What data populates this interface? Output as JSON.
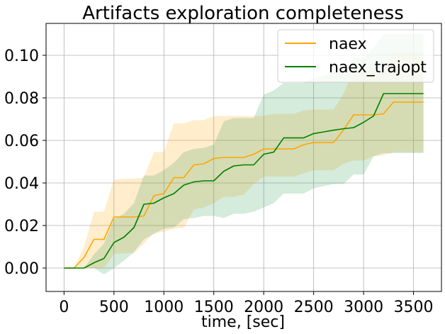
{
  "chart_data": {
    "type": "line",
    "title": "Artifacts exploration completeness",
    "xlabel": "time, [sec]",
    "ylabel": "",
    "xlim": [
      -180,
      3780
    ],
    "ylim": [
      -0.011,
      0.115
    ],
    "xticks": [
      0,
      500,
      1000,
      1500,
      2000,
      2500,
      3000,
      3500
    ],
    "xtick_labels": [
      "0",
      "500",
      "1000",
      "1500",
      "2000",
      "2500",
      "3000",
      "3500"
    ],
    "yticks": [
      0.0,
      0.02,
      0.04,
      0.06,
      0.08,
      0.1
    ],
    "ytick_labels": [
      "0.00",
      "0.02",
      "0.04",
      "0.06",
      "0.08",
      "0.10"
    ],
    "grid": true,
    "legend_position": "top-right",
    "series": [
      {
        "name": "naex",
        "color": "#ffa500",
        "band_color": "#ffa500",
        "x": [
          0,
          100,
          200,
          300,
          400,
          500,
          600,
          700,
          800,
          900,
          1000,
          1100,
          1200,
          1300,
          1400,
          1500,
          1600,
          1700,
          1800,
          1900,
          2000,
          2100,
          2200,
          2300,
          2400,
          2500,
          2600,
          2700,
          2800,
          2900,
          3000,
          3100,
          3200,
          3300,
          3400,
          3500,
          3600
        ],
        "y": [
          0.0,
          0.0,
          0.005,
          0.0135,
          0.0135,
          0.024,
          0.024,
          0.024,
          0.0245,
          0.034,
          0.035,
          0.0425,
          0.0425,
          0.0485,
          0.049,
          0.0515,
          0.052,
          0.052,
          0.052,
          0.0535,
          0.056,
          0.056,
          0.056,
          0.056,
          0.058,
          0.059,
          0.059,
          0.059,
          0.065,
          0.072,
          0.072,
          0.072,
          0.0725,
          0.078,
          0.078,
          0.078,
          0.078
        ],
        "lower": [
          0.0,
          0.0,
          0.0,
          0.0,
          0.0,
          0.0065,
          0.007,
          0.007,
          0.0115,
          0.0165,
          0.017,
          0.0185,
          0.019,
          0.0275,
          0.0285,
          0.0305,
          0.0335,
          0.0335,
          0.0345,
          0.0395,
          0.043,
          0.043,
          0.043,
          0.043,
          0.0445,
          0.046,
          0.046,
          0.046,
          0.049,
          0.0505,
          0.0505,
          0.0525,
          0.053,
          0.0545,
          0.0545,
          0.0545,
          0.0545
        ],
        "upper": [
          0.0,
          0.0,
          0.01,
          0.0265,
          0.0265,
          0.0415,
          0.042,
          0.042,
          0.0425,
          0.0545,
          0.0545,
          0.068,
          0.068,
          0.0695,
          0.0695,
          0.0715,
          0.0715,
          0.0715,
          0.0715,
          0.0715,
          0.0715,
          0.0725,
          0.0725,
          0.0725,
          0.074,
          0.0745,
          0.0745,
          0.0745,
          0.082,
          0.0935,
          0.0935,
          0.0935,
          0.092,
          0.1015,
          0.1015,
          0.1015,
          0.1015
        ]
      },
      {
        "name": "naex_trajopt",
        "color": "#008000",
        "band_color": "#2e9a4e",
        "x": [
          0,
          100,
          200,
          300,
          400,
          500,
          600,
          700,
          800,
          900,
          1000,
          1100,
          1200,
          1300,
          1400,
          1500,
          1600,
          1700,
          1800,
          1900,
          2000,
          2100,
          2200,
          2300,
          2400,
          2500,
          2600,
          2700,
          2800,
          2900,
          3000,
          3100,
          3200,
          3300,
          3400,
          3500,
          3600
        ],
        "y": [
          0.0,
          0.0,
          0.0,
          0.0025,
          0.0045,
          0.012,
          0.0145,
          0.019,
          0.03,
          0.0305,
          0.033,
          0.035,
          0.039,
          0.0405,
          0.041,
          0.041,
          0.0455,
          0.048,
          0.0485,
          0.0485,
          0.0535,
          0.0545,
          0.0612,
          0.0612,
          0.0612,
          0.0632,
          0.064,
          0.0648,
          0.0655,
          0.066,
          0.0685,
          0.0715,
          0.082,
          0.082,
          0.082,
          0.082,
          0.082
        ],
        "lower": [
          0.0,
          0.0,
          0.0,
          0.0,
          -0.003,
          0.0,
          0.0035,
          0.0075,
          0.0135,
          0.016,
          0.0185,
          0.019,
          0.023,
          0.0235,
          0.0245,
          0.0245,
          0.0235,
          0.0255,
          0.0255,
          0.0265,
          0.0285,
          0.0305,
          0.035,
          0.035,
          0.035,
          0.0375,
          0.0385,
          0.0395,
          0.0395,
          0.044,
          0.044,
          0.0525,
          0.054,
          0.054,
          0.054,
          0.054,
          0.054
        ],
        "upper": [
          0.0,
          0.0,
          0.0,
          0.0065,
          0.0115,
          0.023,
          0.0255,
          0.0305,
          0.0435,
          0.0435,
          0.046,
          0.0495,
          0.0545,
          0.056,
          0.0565,
          0.058,
          0.069,
          0.0705,
          0.0705,
          0.0705,
          0.0815,
          0.0835,
          0.087,
          0.087,
          0.087,
          0.0895,
          0.0905,
          0.092,
          0.093,
          0.099,
          0.0985,
          0.1035,
          0.11,
          0.11,
          0.11,
          0.11,
          0.11
        ]
      }
    ]
  }
}
